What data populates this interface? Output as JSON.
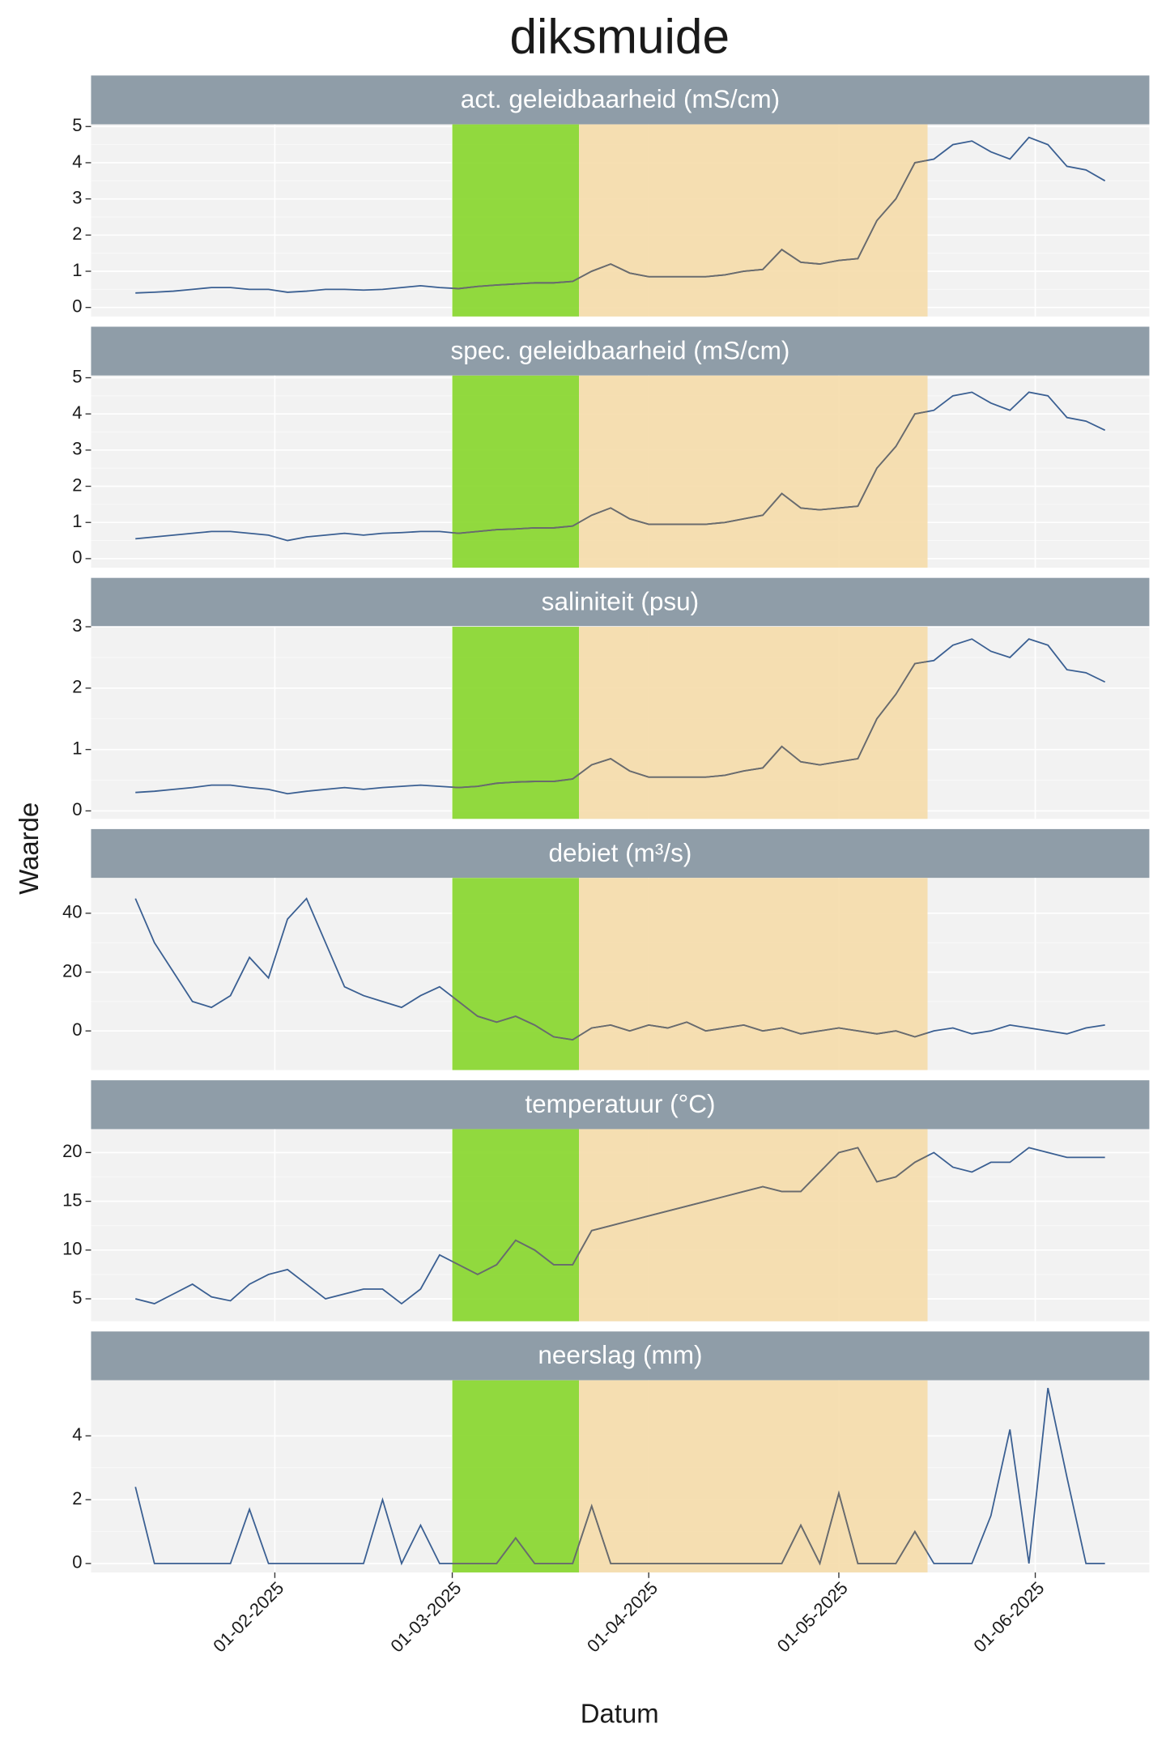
{
  "chart_data": {
    "type": "line",
    "title": "diksmuide",
    "xlabel": "Datum",
    "ylabel": "Waarde",
    "x": [
      "2025-01-10",
      "2025-01-13",
      "2025-01-16",
      "2025-01-19",
      "2025-01-22",
      "2025-01-25",
      "2025-01-28",
      "2025-01-31",
      "2025-02-03",
      "2025-02-06",
      "2025-02-09",
      "2025-02-12",
      "2025-02-15",
      "2025-02-18",
      "2025-02-21",
      "2025-02-24",
      "2025-02-27",
      "2025-03-02",
      "2025-03-05",
      "2025-03-08",
      "2025-03-11",
      "2025-03-14",
      "2025-03-17",
      "2025-03-20",
      "2025-03-23",
      "2025-03-26",
      "2025-03-29",
      "2025-04-01",
      "2025-04-04",
      "2025-04-07",
      "2025-04-10",
      "2025-04-13",
      "2025-04-16",
      "2025-04-19",
      "2025-04-22",
      "2025-04-25",
      "2025-04-28",
      "2025-05-01",
      "2025-05-04",
      "2025-05-07",
      "2025-05-10",
      "2025-05-13",
      "2025-05-16",
      "2025-05-19",
      "2025-05-22",
      "2025-05-25",
      "2025-05-28",
      "2025-05-31",
      "2025-06-03",
      "2025-06-06",
      "2025-06-09",
      "2025-06-12"
    ],
    "xlim": [
      "2025-01-03",
      "2025-06-19"
    ],
    "xticks": [
      {
        "value": "2025-02-01",
        "label": "01-02-2025"
      },
      {
        "value": "2025-03-01",
        "label": "01-03-2025"
      },
      {
        "value": "2025-04-01",
        "label": "01-04-2025"
      },
      {
        "value": "2025-05-01",
        "label": "01-05-2025"
      },
      {
        "value": "2025-06-01",
        "label": "01-06-2025"
      }
    ],
    "grid": true,
    "highlights": [
      {
        "start": "2025-03-01",
        "end": "2025-03-21",
        "color": "#86d62a"
      },
      {
        "start": "2025-03-21",
        "end": "2025-05-15",
        "color": "#f5dcaa"
      }
    ],
    "highlight_line_color": "#6b6b6b",
    "facets": [
      {
        "title": "act. geleidbaarheid (mS/cm)",
        "ylim": [
          -0.25,
          5.06
        ],
        "yticks": [
          0,
          1,
          2,
          3,
          4,
          5
        ],
        "color": "#3a5f92",
        "values": [
          0.4,
          0.42,
          0.45,
          0.5,
          0.55,
          0.55,
          0.5,
          0.5,
          0.42,
          0.45,
          0.5,
          0.5,
          0.48,
          0.5,
          0.55,
          0.6,
          0.55,
          0.52,
          0.58,
          0.62,
          0.65,
          0.68,
          0.68,
          0.72,
          1.0,
          1.2,
          0.95,
          0.85,
          0.85,
          0.85,
          0.85,
          0.9,
          1.0,
          1.05,
          1.6,
          1.25,
          1.2,
          1.3,
          1.35,
          2.4,
          3.0,
          4.0,
          4.1,
          4.5,
          4.6,
          4.3,
          4.1,
          4.7,
          4.5,
          3.9,
          3.8,
          3.5
        ]
      },
      {
        "title": "spec. geleidbaarheid (mS/cm)",
        "ylim": [
          -0.25,
          5.06
        ],
        "yticks": [
          0,
          1,
          2,
          3,
          4,
          5
        ],
        "color": "#3a5f92",
        "values": [
          0.55,
          0.6,
          0.65,
          0.7,
          0.75,
          0.75,
          0.7,
          0.65,
          0.5,
          0.6,
          0.65,
          0.7,
          0.65,
          0.7,
          0.72,
          0.75,
          0.75,
          0.7,
          0.75,
          0.8,
          0.82,
          0.85,
          0.85,
          0.9,
          1.2,
          1.4,
          1.1,
          0.95,
          0.95,
          0.95,
          0.95,
          1.0,
          1.1,
          1.2,
          1.8,
          1.4,
          1.35,
          1.4,
          1.45,
          2.5,
          3.1,
          4.0,
          4.1,
          4.5,
          4.6,
          4.3,
          4.1,
          4.6,
          4.5,
          3.9,
          3.8,
          3.55
        ]
      },
      {
        "title": "saliniteit (psu)",
        "ylim": [
          -0.13,
          3.0
        ],
        "yticks": [
          0,
          1,
          2,
          3
        ],
        "color": "#3a5f92",
        "values": [
          0.3,
          0.32,
          0.35,
          0.38,
          0.42,
          0.42,
          0.38,
          0.35,
          0.28,
          0.32,
          0.35,
          0.38,
          0.35,
          0.38,
          0.4,
          0.42,
          0.4,
          0.38,
          0.4,
          0.45,
          0.47,
          0.48,
          0.48,
          0.52,
          0.75,
          0.85,
          0.65,
          0.55,
          0.55,
          0.55,
          0.55,
          0.58,
          0.65,
          0.7,
          1.05,
          0.8,
          0.75,
          0.8,
          0.85,
          1.5,
          1.9,
          2.4,
          2.45,
          2.7,
          2.8,
          2.6,
          2.5,
          2.8,
          2.7,
          2.3,
          2.25,
          2.1
        ]
      },
      {
        "title": "debiet (m³/s)",
        "ylim": [
          -13.3,
          52
        ],
        "yticks": [
          0,
          20,
          40
        ],
        "color": "#3a5f92",
        "values": [
          45,
          30,
          20,
          10,
          8,
          12,
          25,
          18,
          38,
          45,
          30,
          15,
          12,
          10,
          8,
          12,
          15,
          10,
          5,
          3,
          5,
          2,
          -2,
          -3,
          1,
          2,
          0,
          2,
          1,
          3,
          0,
          1,
          2,
          0,
          1,
          -1,
          0,
          1,
          0,
          -1,
          0,
          -2,
          0,
          1,
          -1,
          0,
          2,
          1,
          0,
          -1,
          1,
          2
        ]
      },
      {
        "title": "temperatuur (°C)",
        "ylim": [
          2.7,
          22.4
        ],
        "yticks": [
          5,
          10,
          15,
          20
        ],
        "color": "#3a5f92",
        "values": [
          5,
          4.5,
          5.5,
          6.5,
          5.2,
          4.8,
          6.5,
          7.5,
          8,
          6.5,
          5,
          5.5,
          6,
          6,
          4.5,
          6,
          9.5,
          8.5,
          7.5,
          8.5,
          11,
          10,
          8.5,
          8.5,
          12,
          12.5,
          13,
          13.5,
          14,
          14.5,
          15,
          15.5,
          16,
          16.5,
          16,
          16,
          18,
          20,
          20.5,
          17,
          17.5,
          19,
          20,
          18.5,
          18,
          19,
          19,
          20.5,
          20,
          19.5,
          19.5,
          19.5
        ]
      },
      {
        "title": "neerslag (mm)",
        "ylim": [
          -0.28,
          5.74
        ],
        "yticks": [
          0,
          2,
          4
        ],
        "color": "#3a5f92",
        "values": [
          2.4,
          0,
          0,
          0,
          0,
          0,
          1.7,
          0,
          0,
          0,
          0,
          0,
          0,
          2.0,
          0,
          1.2,
          0,
          0,
          0,
          0,
          0.8,
          0,
          0,
          0,
          1.8,
          0,
          0,
          0,
          0,
          0,
          0,
          0,
          0,
          0,
          0,
          1.2,
          0,
          2.2,
          0,
          0,
          0,
          1.0,
          0,
          0,
          0,
          1.5,
          4.2,
          0,
          5.5,
          2.7,
          0,
          0
        ]
      }
    ]
  }
}
